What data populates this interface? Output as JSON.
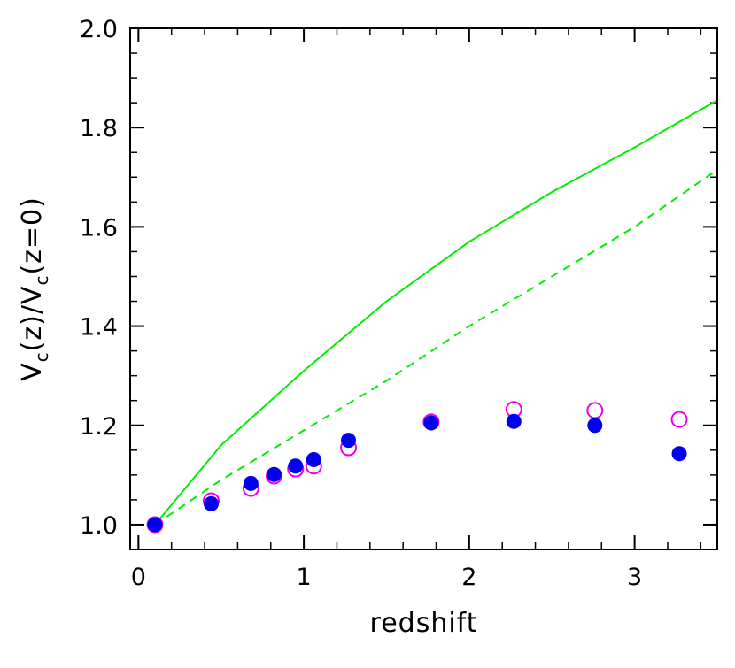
{
  "chart_data": {
    "type": "scatter",
    "xlabel": "redshift",
    "ylabel": {
      "main": "V",
      "sub": "c",
      "part1": "(z)/",
      "part2": "(z=0)"
    },
    "xlim": [
      -0.05,
      3.5
    ],
    "ylim": [
      0.95,
      2.0
    ],
    "x_ticks": [
      {
        "value": 0,
        "label": "0"
      },
      {
        "value": 1,
        "label": "1"
      },
      {
        "value": 2,
        "label": "2"
      },
      {
        "value": 3,
        "label": "3"
      }
    ],
    "y_ticks": [
      {
        "value": 1.0,
        "label": "1.0"
      },
      {
        "value": 1.2,
        "label": "1.2"
      },
      {
        "value": 1.4,
        "label": "1.4"
      },
      {
        "value": 1.6,
        "label": "1.6"
      },
      {
        "value": 1.8,
        "label": "1.8"
      },
      {
        "value": 2.0,
        "label": "2.0"
      }
    ],
    "x_minor_step": 0.2,
    "y_minor_step": 0.05,
    "series": [
      {
        "kind": "line",
        "style": "solid",
        "color": "#00ee00",
        "x": [
          0.1,
          0.5,
          1.0,
          1.5,
          2.0,
          2.5,
          3.0,
          3.5
        ],
        "y": [
          1.0,
          1.16,
          1.31,
          1.45,
          1.57,
          1.67,
          1.76,
          1.855
        ]
      },
      {
        "kind": "line",
        "style": "dashed",
        "color": "#00ee00",
        "x": [
          0.1,
          0.5,
          1.0,
          1.5,
          2.0,
          2.5,
          3.0,
          3.5
        ],
        "y": [
          1.0,
          1.09,
          1.19,
          1.29,
          1.4,
          1.5,
          1.6,
          1.715
        ]
      },
      {
        "kind": "points",
        "marker": "open-circle",
        "color": "#ee00ee",
        "x": [
          0.1,
          0.44,
          0.68,
          0.82,
          0.95,
          1.06,
          1.27,
          1.77,
          2.27,
          2.76,
          3.27
        ],
        "y": [
          1.0,
          1.048,
          1.073,
          1.098,
          1.112,
          1.118,
          1.155,
          1.207,
          1.232,
          1.23,
          1.212
        ]
      },
      {
        "kind": "points",
        "marker": "filled-circle",
        "color": "#0000ee",
        "x": [
          0.1,
          0.44,
          0.68,
          0.82,
          0.95,
          1.06,
          1.27,
          1.77,
          2.27,
          2.76,
          3.27
        ],
        "y": [
          1.0,
          1.042,
          1.083,
          1.101,
          1.118,
          1.131,
          1.17,
          1.205,
          1.208,
          1.2,
          1.143
        ]
      }
    ]
  }
}
